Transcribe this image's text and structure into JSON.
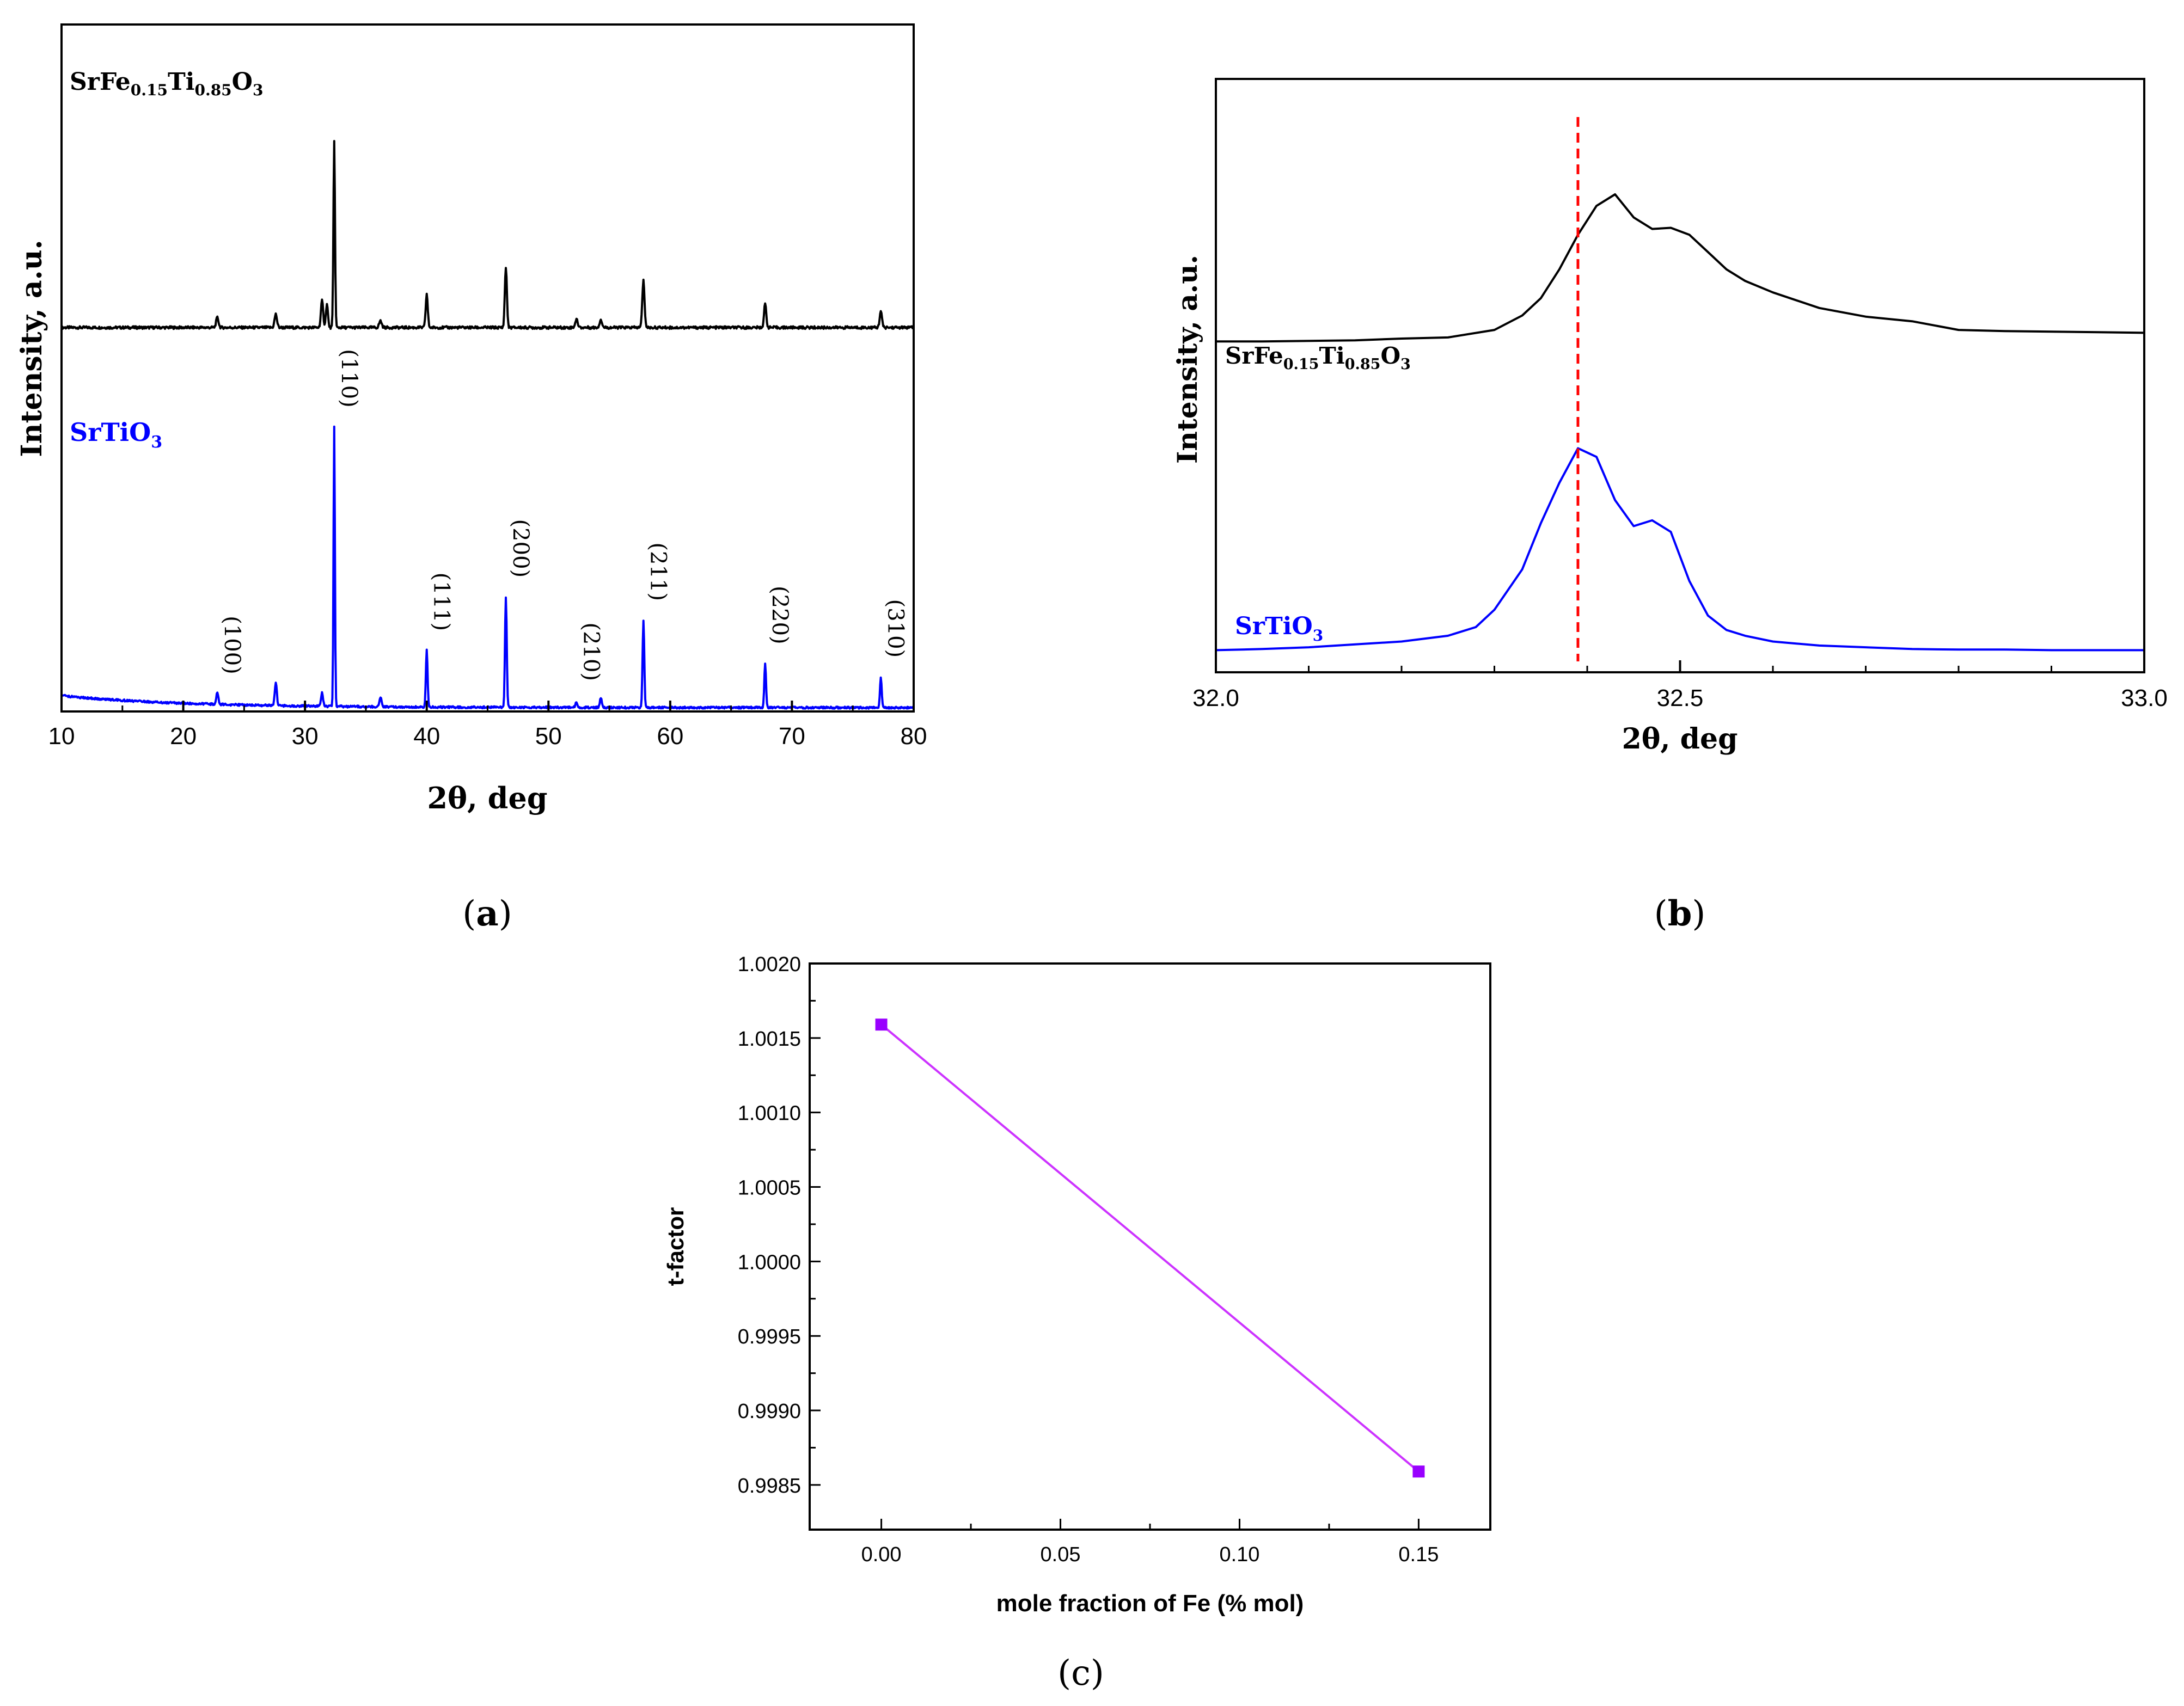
{
  "figure_labels": {
    "a_open": "(",
    "a_letter": "a",
    "a_close": ")",
    "b_open": "(",
    "b_letter": "b",
    "b_close": ")",
    "c_full": "(c)"
  },
  "chart_data": [
    {
      "id": "a",
      "type": "line",
      "xlabel": "2θ, deg",
      "ylabel": "Intensity, a.u.",
      "xlim": [
        10,
        80
      ],
      "xticks": [
        10,
        20,
        30,
        40,
        50,
        60,
        70,
        80
      ],
      "series": [
        {
          "name_main": "SrFe",
          "name_sub1": "0.15",
          "name_mid": "Ti",
          "name_sub2": "0.85",
          "name_end": "O",
          "name_sub3": "3",
          "color": "#000000",
          "baseline": 0.57,
          "noise": 0.004,
          "peaks": [
            [
              22.8,
              0.015,
              0.14
            ],
            [
              27.6,
              0.02,
              0.14
            ],
            [
              31.4,
              0.04,
              0.13
            ],
            [
              31.8,
              0.035,
              0.12
            ],
            [
              32.4,
              0.28,
              0.09
            ],
            [
              36.2,
              0.01,
              0.15
            ],
            [
              40.0,
              0.05,
              0.12
            ],
            [
              46.5,
              0.09,
              0.12
            ],
            [
              52.3,
              0.012,
              0.15
            ],
            [
              54.3,
              0.012,
              0.14
            ],
            [
              57.8,
              0.07,
              0.13
            ],
            [
              67.8,
              0.035,
              0.13
            ],
            [
              77.3,
              0.025,
              0.13
            ]
          ]
        },
        {
          "name_main": "SrTiO",
          "name_sub": "3",
          "color": "#0000ff",
          "baseline": 0.0,
          "bg_start": 0.018,
          "noise": 0.003,
          "peaks": [
            [
              22.8,
              0.018,
              0.12
            ],
            [
              27.6,
              0.035,
              0.12
            ],
            [
              31.4,
              0.02,
              0.12
            ],
            [
              32.4,
              0.42,
              0.08
            ],
            [
              36.2,
              0.015,
              0.12
            ],
            [
              40.0,
              0.085,
              0.1
            ],
            [
              46.5,
              0.165,
              0.1
            ],
            [
              52.3,
              0.008,
              0.12
            ],
            [
              54.3,
              0.014,
              0.12
            ],
            [
              57.8,
              0.13,
              0.1
            ],
            [
              67.8,
              0.065,
              0.1
            ],
            [
              77.3,
              0.045,
              0.1
            ]
          ]
        }
      ],
      "annotations": [
        {
          "text": "(100)",
          "x": 22.8,
          "y": 0.05
        },
        {
          "text": "(110)",
          "x": 32.4,
          "y": 0.45
        },
        {
          "text": "(111)",
          "x": 40.0,
          "y": 0.115
        },
        {
          "text": "(200)",
          "x": 46.5,
          "y": 0.195
        },
        {
          "text": "(210)",
          "x": 52.3,
          "y": 0.04
        },
        {
          "text": "(211)",
          "x": 57.8,
          "y": 0.16
        },
        {
          "text": "(220)",
          "x": 67.8,
          "y": 0.095
        },
        {
          "text": "(310)",
          "x": 77.3,
          "y": 0.075
        }
      ]
    },
    {
      "id": "b",
      "type": "line",
      "xlabel": "2θ, deg",
      "ylabel": "Intensity, a.u.",
      "xlim": [
        32.0,
        33.0
      ],
      "xticks": [
        32.0,
        32.5,
        33.0
      ],
      "xtick_labels": [
        "32.0",
        "32.5",
        "33.0"
      ],
      "reference_line_x": 32.39,
      "reference_line_color": "#ff0000",
      "series": [
        {
          "name_main": "SrFe",
          "name_sub1": "0.15",
          "name_mid": "Ti",
          "name_sub2": "0.85",
          "name_end": "O",
          "name_sub3": "3",
          "color": "#000000",
          "x": [
            32.0,
            32.05,
            32.1,
            32.15,
            32.2,
            32.25,
            32.3,
            32.33,
            32.35,
            32.37,
            32.39,
            32.41,
            32.43,
            32.45,
            32.47,
            32.49,
            32.51,
            32.53,
            32.55,
            32.57,
            32.6,
            32.65,
            32.7,
            32.75,
            32.8,
            32.85,
            32.9,
            32.95,
            33.0
          ],
          "y": [
            0.545,
            0.545,
            0.546,
            0.547,
            0.55,
            0.552,
            0.565,
            0.59,
            0.62,
            0.67,
            0.73,
            0.78,
            0.8,
            0.76,
            0.74,
            0.742,
            0.73,
            0.7,
            0.67,
            0.65,
            0.63,
            0.603,
            0.588,
            0.58,
            0.565,
            0.563,
            0.562,
            0.561,
            0.56
          ]
        },
        {
          "name_main": "SrTiO",
          "name_sub": "3",
          "color": "#0000ff",
          "x": [
            32.0,
            32.05,
            32.1,
            32.15,
            32.2,
            32.25,
            32.28,
            32.3,
            32.33,
            32.35,
            32.37,
            32.39,
            32.41,
            32.43,
            32.45,
            32.47,
            32.49,
            32.51,
            32.53,
            32.55,
            32.57,
            32.6,
            32.65,
            32.7,
            32.75,
            32.8,
            32.85,
            32.9,
            32.95,
            33.0
          ],
          "y": [
            0.01,
            0.012,
            0.015,
            0.02,
            0.025,
            0.035,
            0.05,
            0.08,
            0.15,
            0.23,
            0.3,
            0.36,
            0.345,
            0.27,
            0.225,
            0.235,
            0.215,
            0.13,
            0.07,
            0.045,
            0.035,
            0.025,
            0.018,
            0.015,
            0.012,
            0.011,
            0.011,
            0.01,
            0.01,
            0.01
          ]
        }
      ]
    },
    {
      "id": "c",
      "type": "line",
      "xlabel": "mole fraction of Fe (% mol)",
      "ylabel": "t-factor",
      "xlim": [
        -0.02,
        0.17
      ],
      "ylim": [
        0.9982,
        1.002
      ],
      "xticks": [
        0.0,
        0.05,
        0.1,
        0.15
      ],
      "xtick_labels": [
        "0.00",
        "0.05",
        "0.10",
        "0.15"
      ],
      "yticks": [
        0.9985,
        0.999,
        0.9995,
        1.0,
        1.0005,
        1.001,
        1.0015,
        1.002
      ],
      "ytick_labels": [
        "0.9985",
        "0.9990",
        "0.9995",
        "1.0000",
        "1.0005",
        "1.0010",
        "1.0015",
        "1.0020"
      ],
      "series": [
        {
          "name": "t-factor",
          "color": "#cc33ff",
          "marker_color": "#9900ff",
          "x": [
            0.0,
            0.15
          ],
          "y": [
            1.00159,
            0.99859
          ]
        }
      ]
    }
  ]
}
